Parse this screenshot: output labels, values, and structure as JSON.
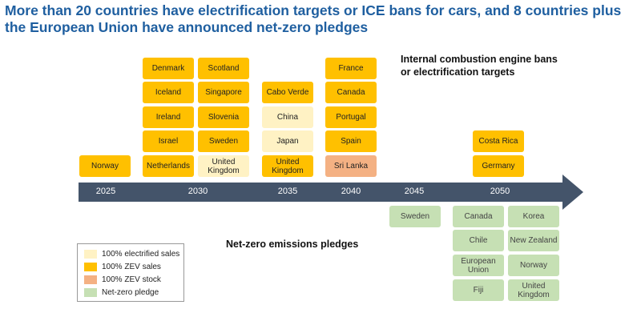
{
  "title": "More than 20 countries have electrification targets or ICE bans for cars, and 8 countries plus the European Union have announced net-zero pledges",
  "top_heading": "Internal combustion engine bans or electrification targets",
  "bottom_heading": "Net-zero emissions pledges",
  "colors": {
    "electrified": "#fff2c4",
    "zev_sales": "#ffc000",
    "zev_stock": "#f4b183",
    "net_zero": "#c6e0b4",
    "timeline": "#44546a",
    "title": "#1f5fa0"
  },
  "timeline": {
    "years": [
      "2025",
      "2030",
      "2035",
      "2040",
      "2045",
      "2050"
    ]
  },
  "targets": [
    {
      "year": "2025",
      "items": [
        {
          "label": "Norway",
          "type": "zev_sales"
        }
      ]
    },
    {
      "year": "2030a",
      "items": [
        {
          "label": "Denmark",
          "type": "zev_sales"
        },
        {
          "label": "Iceland",
          "type": "zev_sales"
        },
        {
          "label": "Ireland",
          "type": "zev_sales"
        },
        {
          "label": "Israel",
          "type": "zev_sales"
        },
        {
          "label": "Netherlands",
          "type": "zev_sales"
        }
      ]
    },
    {
      "year": "2030b",
      "items": [
        {
          "label": "Scotland",
          "type": "zev_sales"
        },
        {
          "label": "Singapore",
          "type": "zev_sales"
        },
        {
          "label": "Slovenia",
          "type": "zev_sales"
        },
        {
          "label": "Sweden",
          "type": "zev_sales"
        },
        {
          "label": "United Kingdom",
          "type": "electrified"
        }
      ]
    },
    {
      "year": "2035",
      "items": [
        {
          "label": "Cabo Verde",
          "type": "zev_sales"
        },
        {
          "label": "China",
          "type": "electrified"
        },
        {
          "label": "Japan",
          "type": "electrified"
        },
        {
          "label": "United Kingdom",
          "type": "zev_sales"
        }
      ]
    },
    {
      "year": "2040",
      "items": [
        {
          "label": "France",
          "type": "zev_sales"
        },
        {
          "label": "Canada",
          "type": "zev_sales"
        },
        {
          "label": "Portugal",
          "type": "zev_sales"
        },
        {
          "label": "Spain",
          "type": "zev_sales"
        },
        {
          "label": "Sri Lanka",
          "type": "zev_stock"
        }
      ]
    },
    {
      "year": "2050",
      "items": [
        {
          "label": "Costa Rica",
          "type": "zev_sales"
        },
        {
          "label": "Germany",
          "type": "zev_sales"
        }
      ]
    }
  ],
  "pledges": [
    {
      "year": "2045",
      "items": [
        "Sweden"
      ]
    },
    {
      "year": "2050a",
      "items": [
        "Canada",
        "Chile",
        "European Union",
        "Fiji"
      ]
    },
    {
      "year": "2050b",
      "items": [
        "Korea",
        "New Zealand",
        "Norway",
        "United Kingdom"
      ]
    }
  ],
  "legend": [
    {
      "label": "100% electrified sales",
      "type": "electrified"
    },
    {
      "label": "100% ZEV sales",
      "type": "zev_sales"
    },
    {
      "label": "100% ZEV stock",
      "type": "zev_stock"
    },
    {
      "label": "Net-zero pledge",
      "type": "net_zero"
    }
  ]
}
